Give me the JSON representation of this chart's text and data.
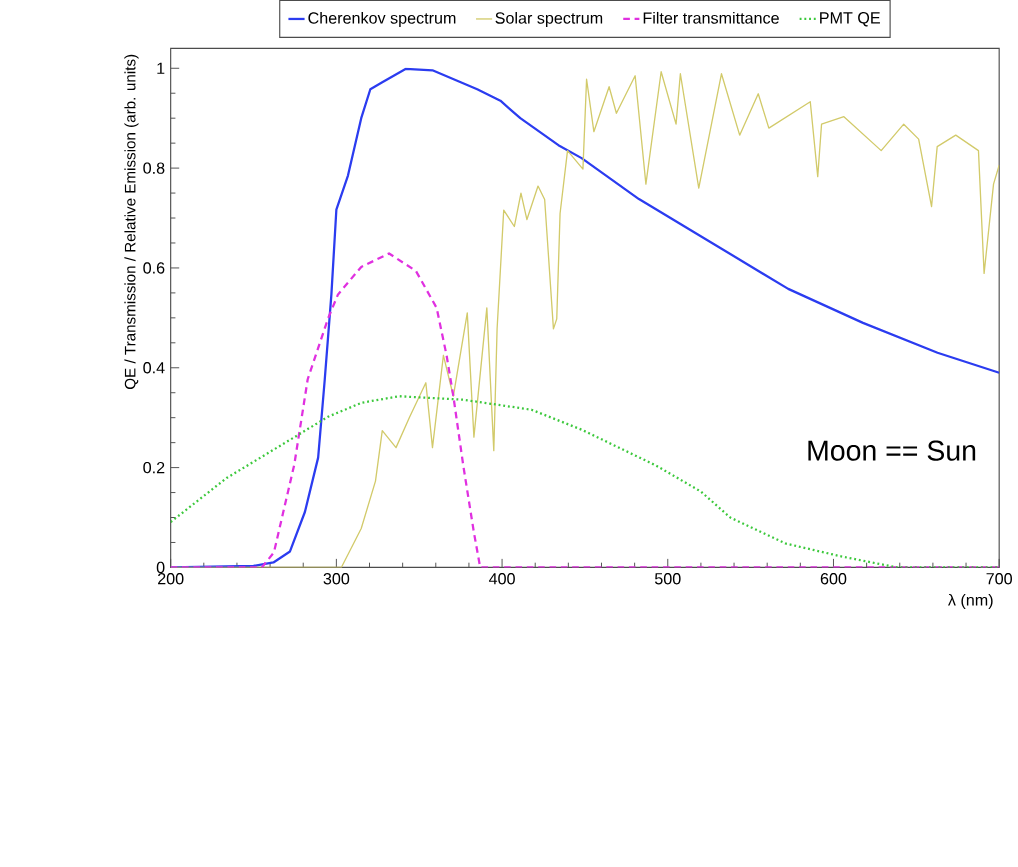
{
  "chart_data": {
    "type": "line",
    "xlabel": "λ (nm)",
    "ylabel": "QE / Transmission / Relative Emission (arb. units)",
    "xlim": [
      200,
      700
    ],
    "ylim": [
      0,
      1.04
    ],
    "xticks": [
      200,
      300,
      400,
      500,
      600,
      700
    ],
    "yticks": [
      0,
      0.2,
      0.4,
      0.6,
      0.8,
      1
    ],
    "legend": "top",
    "annotations": [
      "Moon == Sun"
    ],
    "series": [
      {
        "name": "Cherenkov spectrum",
        "color": "#2b3cf0",
        "line_style": "solid",
        "x": [
          200,
          250,
          262,
          272,
          281,
          289,
          293,
          297,
          300,
          307,
          315,
          320.5,
          327.7,
          342,
          358,
          385,
          399,
          411,
          434,
          448,
          482.6,
          527.7,
          572.7,
          617.8,
          662.8,
          700
        ],
        "values": [
          0,
          0.003,
          0.01,
          0.032,
          0.111,
          0.22,
          0.377,
          0.547,
          0.717,
          0.785,
          0.9,
          0.958,
          0.972,
          0.999,
          0.996,
          0.958,
          0.935,
          0.9,
          0.846,
          0.82,
          0.738,
          0.648,
          0.558,
          0.49,
          0.43,
          0.39
        ]
      },
      {
        "name": "Solar spectrum",
        "color": "#d2ca6a",
        "line_style": "solid",
        "x": [
          200,
          303,
          315,
          323.6,
          327.7,
          336,
          344,
          354,
          358,
          364.6,
          370.6,
          379,
          383,
          390.8,
          395,
          397,
          401,
          407.4,
          411.4,
          415,
          421.7,
          425.7,
          431,
          433,
          435,
          439.5,
          448.8,
          451,
          455.4,
          464.6,
          469,
          480.3,
          486.8,
          496,
          505,
          507.6,
          518.7,
          532.4,
          543.4,
          554.6,
          561,
          586,
          590.5,
          592.8,
          606.3,
          628.8,
          642.4,
          651.4,
          659.2,
          662.6,
          673.8,
          687.5,
          690.9,
          696.6,
          700
        ],
        "values": [
          0,
          0,
          0.078,
          0.173,
          0.274,
          0.24,
          0.3,
          0.37,
          0.24,
          0.425,
          0.343,
          0.51,
          0.261,
          0.52,
          0.234,
          0.478,
          0.716,
          0.683,
          0.75,
          0.697,
          0.764,
          0.737,
          0.478,
          0.498,
          0.709,
          0.835,
          0.798,
          0.978,
          0.873,
          0.963,
          0.91,
          0.985,
          0.768,
          0.993,
          0.888,
          0.989,
          0.76,
          0.989,
          0.866,
          0.949,
          0.88,
          0.933,
          0.783,
          0.888,
          0.903,
          0.835,
          0.888,
          0.858,
          0.723,
          0.843,
          0.866,
          0.835,
          0.589,
          0.768,
          0.806
        ]
      },
      {
        "name": "Filter transmittance",
        "color": "#e030e0",
        "line_style": "dashed",
        "x": [
          200,
          255,
          262.3,
          274.6,
          282.7,
          295,
          301,
          315,
          331.8,
          348,
          360.5,
          366.5,
          370.6,
          376.5,
          383,
          386.8,
          388,
          700
        ],
        "values": [
          0,
          0,
          0.03,
          0.206,
          0.377,
          0.499,
          0.547,
          0.602,
          0.629,
          0.594,
          0.52,
          0.425,
          0.343,
          0.206,
          0.07,
          0,
          0,
          0
        ]
      },
      {
        "name": "PMT QE",
        "color": "#3cc83c",
        "line_style": "dotted",
        "x": [
          200,
          233.7,
          274.7,
          295,
          315.3,
          338,
          376.5,
          417.7,
          448,
          493,
          520,
          537.7,
          571,
          604.8,
          638.4,
          700
        ],
        "values": [
          0.091,
          0.179,
          0.261,
          0.302,
          0.33,
          0.343,
          0.336,
          0.316,
          0.276,
          0.204,
          0.152,
          0.1,
          0.048,
          0.022,
          0,
          0
        ]
      }
    ]
  }
}
